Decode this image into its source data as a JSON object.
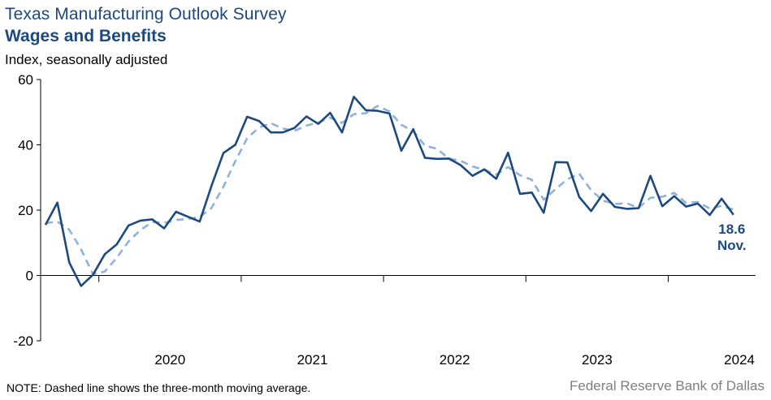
{
  "header": {
    "title": "Texas Manufacturing Outlook Survey",
    "subtitle": "Wages and Benefits",
    "units": "Index, seasonally adjusted"
  },
  "footer": {
    "note": "NOTE: Dashed line shows the three-month  moving average.",
    "source": "Federal Reserve Bank of Dallas"
  },
  "colors": {
    "series": "#1c4a80",
    "moving_average": "#8fb2dc",
    "axis": "#000000"
  },
  "chart_data": {
    "type": "line",
    "title": "Wages and Benefits",
    "ylabel": "Index, seasonally adjusted",
    "ylim": [
      -20,
      60
    ],
    "yticks": [
      -20,
      0,
      20,
      40,
      60
    ],
    "year_labels": [
      "2020",
      "2021",
      "2022",
      "2023",
      "2024"
    ],
    "x_start": "2019-08",
    "x_end": "2024-11",
    "grid": false,
    "series": [
      {
        "values": [
          15.5,
          22.3,
          4.0,
          -3.2,
          0.2,
          6.5,
          9.5,
          15.3,
          16.8,
          17.2,
          14.4,
          19.5,
          18.0,
          16.5,
          27.5,
          37.5,
          40.0,
          48.6,
          47.3,
          43.8,
          43.8,
          45.2,
          48.7,
          46.4,
          49.8,
          43.8,
          54.7,
          50.6,
          50.4,
          49.6,
          38.2,
          44.8,
          36.0,
          35.7,
          35.8,
          33.8,
          30.5,
          32.5,
          29.6,
          37.6,
          25.0,
          25.4,
          19.2,
          34.7,
          34.6,
          24.0,
          19.7,
          25.0,
          21.0,
          20.4,
          20.6,
          30.5,
          21.2,
          24.3,
          21.1,
          22.0,
          18.5,
          23.5,
          18.6
        ]
      },
      {
        "values": [
          16.0,
          16.5,
          14.0,
          8.0,
          0.4,
          1.2,
          5.4,
          10.4,
          13.9,
          16.4,
          16.1,
          17.0,
          17.3,
          17.9,
          20.7,
          27.2,
          35.0,
          42.0,
          45.3,
          46.6,
          45.0,
          44.3,
          45.9,
          46.8,
          48.3,
          46.7,
          49.4,
          49.7,
          51.9,
          50.2,
          46.1,
          44.2,
          39.7,
          38.8,
          35.8,
          35.1,
          33.4,
          32.3,
          30.9,
          33.2,
          30.7,
          29.3,
          23.2,
          26.4,
          29.5,
          31.1,
          26.1,
          22.9,
          21.9,
          22.1,
          20.7,
          23.8,
          24.1,
          25.3,
          22.2,
          22.5,
          20.5,
          21.3,
          20.2
        ]
      }
    ],
    "last_value_label": "18.6",
    "last_period_label": "Nov."
  }
}
